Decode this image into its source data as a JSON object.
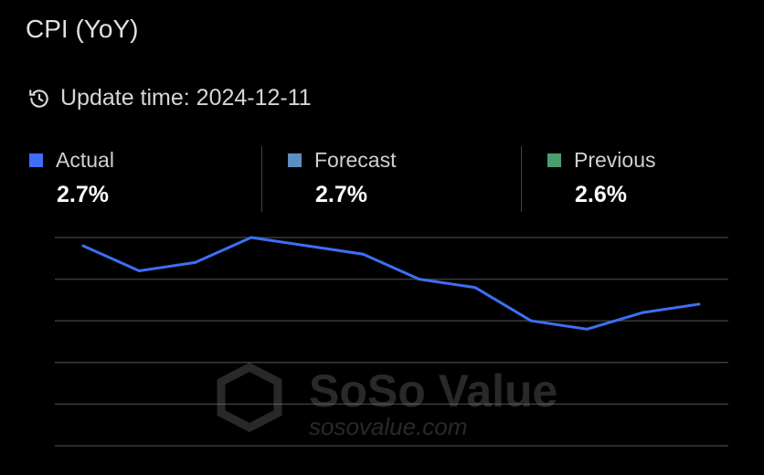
{
  "title": "CPI (YoY)",
  "update": {
    "icon": "history-clock-icon",
    "label": "Update time: 2024-12-11"
  },
  "stats": [
    {
      "label": "Actual",
      "value": "2.7%",
      "color": "#3d6ff5"
    },
    {
      "label": "Forecast",
      "value": "2.7%",
      "color": "#5b8fbf"
    },
    {
      "label": "Previous",
      "value": "2.6%",
      "color": "#4a9d6e"
    }
  ],
  "watermark": {
    "brand": "SoSo Value",
    "url": "sosovalue.com"
  },
  "chart_data": {
    "type": "line",
    "title": "",
    "xlabel": "",
    "ylabel": "",
    "ylim": [
      1.0,
      3.5
    ],
    "grid": true,
    "gridlines": [
      3.5,
      3.0,
      2.5,
      2.0,
      1.5,
      1.0
    ],
    "series": [
      {
        "color": "#3d6ff5",
        "values": [
          3.4,
          3.1,
          3.2,
          3.5,
          3.4,
          3.3,
          3.0,
          2.9,
          2.5,
          2.4,
          2.6,
          2.7
        ]
      }
    ]
  }
}
